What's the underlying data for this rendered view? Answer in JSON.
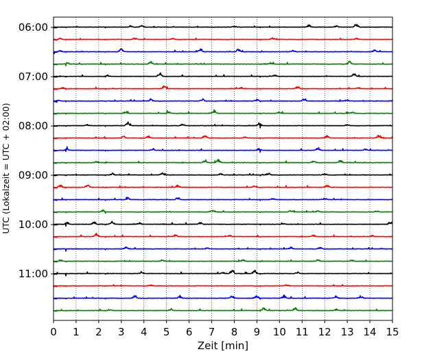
{
  "chart_data": {
    "type": "line",
    "title": "",
    "xlabel": "Zeit  [min]",
    "ylabel": "UTC (Lokalzeit = UTC + 02:00)",
    "xlim": [
      0,
      15
    ],
    "x_ticks": [
      0,
      1,
      2,
      3,
      4,
      5,
      6,
      7,
      8,
      9,
      10,
      11,
      12,
      13,
      14,
      15
    ],
    "y_tick_labels": [
      "06:00",
      "07:00",
      "08:00",
      "09:00",
      "10:00",
      "11:00"
    ],
    "grid": "vertical dotted",
    "trace_colors": [
      "#000000",
      "#ff0000",
      "#0000ff",
      "#008000"
    ],
    "traces": [
      {
        "start": "06:00",
        "color": "#000000",
        "events": [
          [
            3.4,
            0.25
          ],
          [
            3.9,
            0.3
          ],
          [
            8.0,
            0.2
          ],
          [
            11.3,
            0.45
          ],
          [
            12.5,
            0.3
          ],
          [
            13.4,
            0.6
          ]
        ]
      },
      {
        "start": "06:15",
        "color": "#ff0000",
        "events": [
          [
            0.3,
            0.2
          ],
          [
            3.6,
            0.25
          ],
          [
            5.3,
            0.2
          ],
          [
            9.7,
            0.25
          ],
          [
            13.4,
            0.2
          ]
        ]
      },
      {
        "start": "06:30",
        "color": "#0000ff",
        "events": [
          [
            0.3,
            0.2
          ],
          [
            3.0,
            0.6
          ],
          [
            6.5,
            0.45
          ],
          [
            8.2,
            0.5
          ],
          [
            10.6,
            0.25
          ],
          [
            14.2,
            0.3
          ]
        ]
      },
      {
        "start": "06:45",
        "color": "#008000",
        "events": [
          [
            0.6,
            0.3
          ],
          [
            4.3,
            0.45
          ],
          [
            9.6,
            0.25
          ],
          [
            13.1,
            0.45
          ]
        ]
      },
      {
        "start": "07:00",
        "color": "#000000",
        "events": [
          [
            2.4,
            0.2
          ],
          [
            4.7,
            0.65
          ],
          [
            9.8,
            0.25
          ],
          [
            13.3,
            0.45
          ]
        ]
      },
      {
        "start": "07:15",
        "color": "#ff0000",
        "events": [
          [
            0.4,
            0.2
          ],
          [
            4.9,
            0.45
          ],
          [
            8.3,
            0.2
          ],
          [
            10.8,
            0.45
          ],
          [
            13.5,
            0.25
          ]
        ]
      },
      {
        "start": "07:30",
        "color": "#0000ff",
        "events": [
          [
            0.2,
            0.2
          ],
          [
            4.3,
            0.35
          ],
          [
            6.6,
            0.4
          ],
          [
            9.0,
            0.3
          ],
          [
            11.1,
            0.5
          ],
          [
            13.0,
            0.2
          ]
        ]
      },
      {
        "start": "07:45",
        "color": "#008000",
        "events": [
          [
            3.2,
            0.35
          ],
          [
            5.1,
            0.35
          ],
          [
            7.1,
            0.55
          ],
          [
            10.0,
            0.3
          ],
          [
            13.2,
            0.25
          ]
        ]
      },
      {
        "start": "08:00",
        "color": "#000000",
        "events": [
          [
            1.5,
            0.2
          ],
          [
            3.3,
            0.6
          ],
          [
            5.7,
            0.3
          ],
          [
            9.1,
            0.45
          ],
          [
            13.0,
            0.2
          ]
        ]
      },
      {
        "start": "08:15",
        "color": "#ff0000",
        "events": [
          [
            3.1,
            0.3
          ],
          [
            4.2,
            0.35
          ],
          [
            6.7,
            0.55
          ],
          [
            8.5,
            0.3
          ],
          [
            12.1,
            0.4
          ],
          [
            14.4,
            0.55
          ]
        ]
      },
      {
        "start": "08:30",
        "color": "#0000ff",
        "events": [
          [
            0.6,
            0.35
          ],
          [
            4.4,
            0.3
          ],
          [
            9.1,
            0.35
          ],
          [
            11.7,
            0.5
          ],
          [
            13.8,
            0.25
          ]
        ]
      },
      {
        "start": "08:45",
        "color": "#008000",
        "events": [
          [
            1.9,
            0.25
          ],
          [
            6.7,
            0.55
          ],
          [
            7.3,
            0.55
          ],
          [
            11.5,
            0.3
          ],
          [
            12.7,
            0.45
          ]
        ]
      },
      {
        "start": "09:00",
        "color": "#000000",
        "events": [
          [
            2.6,
            0.3
          ],
          [
            4.8,
            0.35
          ],
          [
            7.4,
            0.2
          ],
          [
            9.5,
            0.35
          ],
          [
            12.0,
            0.3
          ]
        ]
      },
      {
        "start": "09:15",
        "color": "#ff0000",
        "events": [
          [
            0.3,
            0.4
          ],
          [
            1.5,
            0.55
          ],
          [
            5.5,
            0.35
          ],
          [
            8.9,
            0.3
          ],
          [
            12.1,
            0.45
          ]
        ]
      },
      {
        "start": "09:30",
        "color": "#0000ff",
        "events": [
          [
            3.3,
            0.3
          ],
          [
            5.5,
            0.45
          ],
          [
            9.7,
            0.2
          ],
          [
            12.0,
            0.25
          ]
        ]
      },
      {
        "start": "09:45",
        "color": "#008000",
        "events": [
          [
            2.2,
            0.3
          ],
          [
            7.0,
            0.4
          ],
          [
            10.5,
            0.3
          ],
          [
            11.7,
            0.2
          ],
          [
            14.3,
            0.2
          ]
        ]
      },
      {
        "start": "10:00",
        "color": "#000000",
        "events": [
          [
            0.6,
            0.4
          ],
          [
            1.8,
            0.45
          ],
          [
            2.6,
            0.55
          ],
          [
            3.8,
            0.3
          ],
          [
            6.5,
            0.3
          ],
          [
            10.2,
            0.2
          ],
          [
            14.9,
            0.45
          ]
        ]
      },
      {
        "start": "10:15",
        "color": "#ff0000",
        "events": [
          [
            1.9,
            0.6
          ],
          [
            5.4,
            0.35
          ],
          [
            7.8,
            0.2
          ],
          [
            11.5,
            0.25
          ],
          [
            14.1,
            0.2
          ]
        ]
      },
      {
        "start": "10:30",
        "color": "#0000ff",
        "events": [
          [
            3.2,
            0.35
          ],
          [
            6.8,
            0.2
          ],
          [
            10.5,
            0.3
          ],
          [
            11.8,
            0.3
          ]
        ]
      },
      {
        "start": "10:45",
        "color": "#008000",
        "events": [
          [
            0.3,
            0.3
          ],
          [
            4.8,
            0.25
          ],
          [
            8.4,
            0.25
          ],
          [
            11.7,
            0.35
          ],
          [
            13.2,
            0.2
          ]
        ]
      },
      {
        "start": "11:00",
        "color": "#000000",
        "events": [
          [
            3.9,
            0.3
          ],
          [
            7.5,
            0.2
          ],
          [
            7.9,
            0.55
          ],
          [
            8.9,
            0.55
          ],
          [
            10.8,
            0.3
          ]
        ]
      },
      {
        "start": "11:15",
        "color": "#ff0000",
        "events": [
          [
            4.3,
            0.15
          ],
          [
            10.3,
            0.15
          ]
        ]
      },
      {
        "start": "11:30",
        "color": "#0000ff",
        "events": [
          [
            3.6,
            0.55
          ],
          [
            5.6,
            0.45
          ],
          [
            7.9,
            0.5
          ],
          [
            9.0,
            0.5
          ],
          [
            10.2,
            0.5
          ],
          [
            12.5,
            0.35
          ],
          [
            13.6,
            0.45
          ]
        ]
      },
      {
        "start": "11:45",
        "color": "#008000",
        "events": [
          [
            2.5,
            0.25
          ],
          [
            5.2,
            0.3
          ],
          [
            9.3,
            0.55
          ],
          [
            10.7,
            0.55
          ],
          [
            12.5,
            0.25
          ]
        ]
      }
    ]
  }
}
